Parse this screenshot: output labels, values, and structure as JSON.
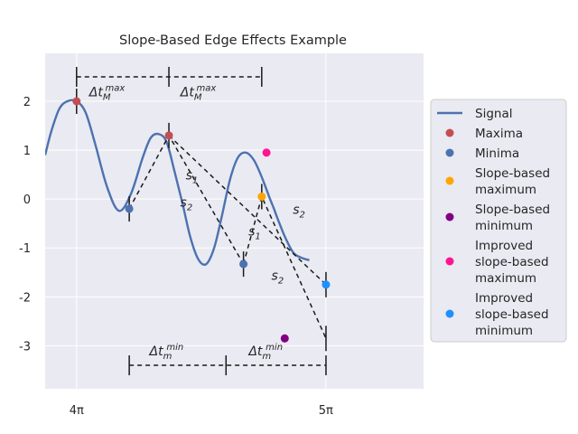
{
  "chart_data": {
    "type": "line",
    "title": "Slope-Based Edge Effects Example",
    "xlabel": "",
    "ylabel": "",
    "xlim": [
      12.17,
      16.94
    ],
    "ylim": [
      -3.88,
      2.98
    ],
    "grid": true,
    "legend_position": "right",
    "x_ticks": [
      {
        "value": 12.566,
        "label": "4π"
      },
      {
        "value": 15.708,
        "label": "5π"
      }
    ],
    "y_ticks": [
      {
        "value": 2,
        "label": "2"
      },
      {
        "value": 1,
        "label": "1"
      },
      {
        "value": 0,
        "label": "0"
      },
      {
        "value": -1,
        "label": "-1"
      },
      {
        "value": -2,
        "label": "-2"
      },
      {
        "value": -3,
        "label": "-3"
      }
    ],
    "series": [
      {
        "name": "Signal",
        "kind": "line",
        "color": "#4c72b0",
        "x": [
          12.17,
          12.25,
          12.35,
          12.45,
          12.566,
          12.68,
          12.8,
          12.95,
          13.1,
          13.25,
          13.4,
          13.5,
          13.6,
          13.7,
          13.8,
          13.9,
          14.0,
          14.1,
          14.2,
          14.3,
          14.4,
          14.5,
          14.6,
          14.7,
          14.8,
          14.9,
          15.0,
          15.05,
          15.1,
          15.2,
          15.3,
          15.4,
          15.5
        ],
        "y": [
          0.9,
          1.4,
          1.85,
          2.0,
          2.0,
          1.77,
          1.13,
          0.25,
          -0.24,
          0.1,
          0.85,
          1.25,
          1.33,
          1.17,
          0.57,
          -0.08,
          -0.78,
          -1.23,
          -1.33,
          -1.0,
          -0.33,
          0.4,
          0.85,
          0.95,
          0.8,
          0.45,
          0.02,
          -0.18,
          -0.4,
          -0.8,
          -1.1,
          -1.2,
          -1.25
        ]
      },
      {
        "name": "Maxima",
        "kind": "scatter",
        "color": "#c44e52",
        "x": [
          12.566,
          13.73
        ],
        "y": [
          2.0,
          1.3
        ]
      },
      {
        "name": "Minima",
        "kind": "scatter",
        "color": "#4c72b0",
        "x": [
          13.23,
          14.67
        ],
        "y": [
          -0.2,
          -1.33
        ]
      },
      {
        "name": "Slope-based\nmaximum",
        "kind": "scatter",
        "color": "#ffa500",
        "x": [
          14.9
        ],
        "y": [
          0.05
        ]
      },
      {
        "name": "Slope-based\nminimum",
        "kind": "scatter",
        "color": "#800080",
        "x": [
          15.19
        ],
        "y": [
          -2.85
        ]
      },
      {
        "name": "Improved\nslope-based\nmaximum",
        "kind": "scatter",
        "color": "#ff1493",
        "x": [
          14.96
        ],
        "y": [
          0.95
        ]
      },
      {
        "name": "Improved\nslope-based\nminimum",
        "kind": "scatter",
        "color": "#1e90ff",
        "x": [
          15.71
        ],
        "y": [
          -1.75
        ]
      }
    ],
    "dashed_lines": [
      {
        "x": [
          13.23,
          13.73,
          14.67
        ],
        "y": [
          -0.2,
          1.3,
          -1.33
        ]
      },
      {
        "x": [
          14.67,
          14.9,
          15.71
        ],
        "y": [
          -1.33,
          0.05,
          -2.85
        ]
      },
      {
        "x": [
          13.73,
          15.71
        ],
        "y": [
          1.3,
          -1.75
        ]
      }
    ],
    "annotations": [
      {
        "text": "s",
        "sub": "1",
        "x": 14.02,
        "y": 0.4
      },
      {
        "text": "s",
        "sub": "2",
        "x": 13.95,
        "y": -0.15
      },
      {
        "text": "s",
        "sub": "1",
        "x": 14.81,
        "y": -0.75
      },
      {
        "text": "s",
        "sub": "2",
        "x": 15.37,
        "y": -0.3
      },
      {
        "text": "s",
        "sub": "2",
        "x": 15.1,
        "y": -1.65
      },
      {
        "text": "Δt",
        "sup": "max",
        "sub": "M",
        "x": 12.95,
        "y": 2.1
      },
      {
        "text": "Δt",
        "sup": "max",
        "sub": "M",
        "x": 14.1,
        "y": 2.1
      },
      {
        "text": "Δt",
        "sup": "min",
        "sub": "m",
        "x": 13.7,
        "y": -3.2
      },
      {
        "text": "Δt",
        "sup": "min",
        "sub": "m",
        "x": 14.95,
        "y": -3.2
      }
    ],
    "intervals": [
      {
        "y": 2.5,
        "ticks_x": [
          12.566,
          13.73,
          14.9
        ]
      },
      {
        "y": -3.4,
        "ticks_x": [
          13.23,
          14.45,
          15.71
        ]
      }
    ],
    "marker_ticks": [
      {
        "x": 12.566,
        "y": 2.0
      },
      {
        "x": 13.23,
        "y": -0.2
      },
      {
        "x": 13.73,
        "y": 1.3
      },
      {
        "x": 14.67,
        "y": -1.33
      },
      {
        "x": 14.9,
        "y": 0.05
      },
      {
        "x": 15.71,
        "y": -1.75
      },
      {
        "x": 15.71,
        "y": -2.85
      }
    ]
  }
}
